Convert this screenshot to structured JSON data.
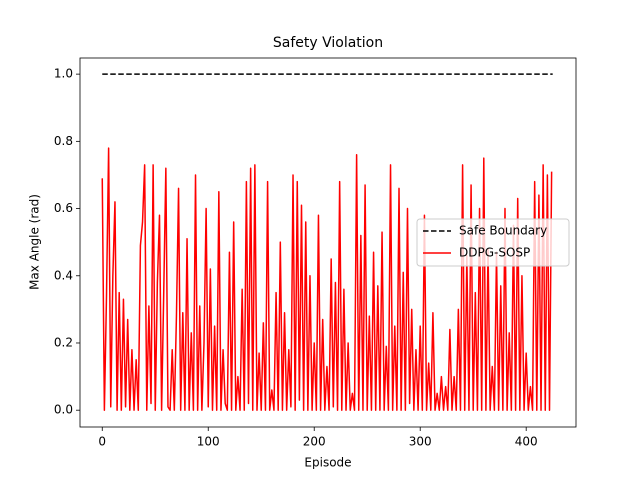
{
  "chart_data": {
    "type": "line",
    "title": "Safety Violation",
    "xlabel": "Episode",
    "ylabel": "Max Angle (rad)",
    "xlim": [
      -21,
      447
    ],
    "ylim": [
      -0.05,
      1.048
    ],
    "xticks": [
      0,
      100,
      200,
      300,
      400
    ],
    "yticks": [
      {
        "value": 0,
        "label": "0.0"
      },
      0.2,
      0.4,
      0.6,
      0.8,
      {
        "value": 1,
        "label": "1.0"
      }
    ],
    "legend": "center right",
    "grid": false,
    "series": [
      {
        "name": "Safe Boundary",
        "color": "#000000",
        "dashed": true,
        "x": [
          0,
          425
        ],
        "values": [
          1,
          1
        ]
      },
      {
        "name": "DDPG-SOSP",
        "color": "#ff0000",
        "dashed": false,
        "x": [
          0,
          2,
          4,
          6,
          8,
          10,
          12,
          14,
          16,
          18,
          20,
          22,
          24,
          26,
          28,
          30,
          32,
          34,
          36,
          38,
          40,
          42,
          44,
          46,
          48,
          50,
          52,
          54,
          56,
          58,
          60,
          62,
          64,
          66,
          68,
          70,
          72,
          74,
          76,
          78,
          80,
          82,
          84,
          86,
          88,
          90,
          92,
          94,
          96,
          98,
          100,
          102,
          104,
          106,
          108,
          110,
          112,
          114,
          116,
          118,
          120,
          122,
          124,
          126,
          128,
          130,
          132,
          134,
          136,
          138,
          140,
          142,
          144,
          146,
          148,
          150,
          152,
          154,
          156,
          158,
          160,
          162,
          164,
          166,
          168,
          170,
          172,
          174,
          176,
          178,
          180,
          182,
          184,
          186,
          188,
          190,
          192,
          194,
          196,
          198,
          200,
          202,
          204,
          206,
          208,
          210,
          212,
          214,
          216,
          218,
          220,
          222,
          224,
          226,
          228,
          230,
          232,
          234,
          236,
          238,
          240,
          242,
          244,
          246,
          248,
          250,
          252,
          254,
          256,
          258,
          260,
          262,
          264,
          266,
          268,
          270,
          272,
          274,
          276,
          278,
          280,
          282,
          284,
          286,
          288,
          290,
          292,
          294,
          296,
          298,
          300,
          302,
          304,
          306,
          308,
          310,
          312,
          314,
          316,
          318,
          320,
          322,
          324,
          326,
          328,
          330,
          332,
          334,
          336,
          338,
          340,
          342,
          344,
          346,
          348,
          350,
          352,
          354,
          356,
          358,
          360,
          362,
          364,
          366,
          368,
          370,
          372,
          374,
          376,
          378,
          380,
          382,
          384,
          386,
          388,
          390,
          392,
          394,
          396,
          398,
          400,
          402,
          404,
          406,
          408,
          410,
          412,
          414,
          416,
          418,
          420,
          422,
          424
        ],
        "values": [
          0.69,
          0.0,
          0.34,
          0.78,
          0.01,
          0.4,
          0.62,
          0.0,
          0.35,
          0.0,
          0.33,
          0.01,
          0.27,
          0.0,
          0.18,
          0.0,
          0.15,
          0.0,
          0.49,
          0.56,
          0.73,
          0.0,
          0.31,
          0.02,
          0.73,
          0.0,
          0.38,
          0.58,
          0.0,
          0.35,
          0.72,
          0.01,
          0.0,
          0.18,
          0.0,
          0.28,
          0.66,
          0.0,
          0.29,
          0.0,
          0.51,
          0.0,
          0.23,
          0.0,
          0.7,
          0.0,
          0.31,
          0.0,
          0.2,
          0.6,
          0.01,
          0.42,
          0.0,
          0.25,
          0.0,
          0.65,
          0.0,
          0.18,
          0.02,
          0.0,
          0.47,
          0.0,
          0.56,
          0.0,
          0.1,
          0.0,
          0.36,
          0.0,
          0.68,
          0.02,
          0.72,
          0.0,
          0.73,
          0.0,
          0.17,
          0.0,
          0.26,
          0.0,
          0.68,
          0.0,
          0.06,
          0.0,
          0.35,
          0.0,
          0.5,
          0.0,
          0.29,
          0.0,
          0.18,
          0.01,
          0.7,
          0.0,
          0.68,
          0.03,
          0.61,
          0.0,
          0.56,
          0.0,
          0.4,
          0.0,
          0.2,
          0.0,
          0.58,
          0.0,
          0.27,
          0.0,
          0.13,
          0.0,
          0.45,
          0.01,
          0.38,
          0.0,
          0.68,
          0.0,
          0.36,
          0.0,
          0.2,
          0.0,
          0.05,
          0.0,
          0.76,
          0.0,
          0.52,
          0.0,
          0.67,
          0.0,
          0.28,
          0.0,
          0.47,
          0.0,
          0.37,
          0.0,
          0.53,
          0.0,
          0.19,
          0.0,
          0.73,
          0.0,
          0.25,
          0.0,
          0.66,
          0.0,
          0.41,
          0.0,
          0.6,
          0.02,
          0.3,
          0.0,
          0.18,
          0.0,
          0.25,
          0.0,
          0.58,
          0.0,
          0.14,
          0.0,
          0.29,
          0.0,
          0.05,
          0.0,
          0.1,
          0.0,
          0.07,
          0.0,
          0.24,
          0.0,
          0.1,
          0.0,
          0.3,
          0.0,
          0.73,
          0.0,
          0.46,
          0.0,
          0.67,
          0.0,
          0.35,
          0.0,
          0.6,
          0.0,
          0.75,
          0.0,
          0.48,
          0.0,
          0.13,
          0.0,
          0.47,
          0.0,
          0.37,
          0.0,
          0.6,
          0.0,
          0.23,
          0.0,
          0.55,
          0.0,
          0.63,
          0.0,
          0.4,
          0.0,
          0.17,
          0.0,
          0.07,
          0.0,
          0.68,
          0.0,
          0.64,
          0.0,
          0.73,
          0.0,
          0.7,
          0.0,
          0.71
        ]
      }
    ]
  }
}
